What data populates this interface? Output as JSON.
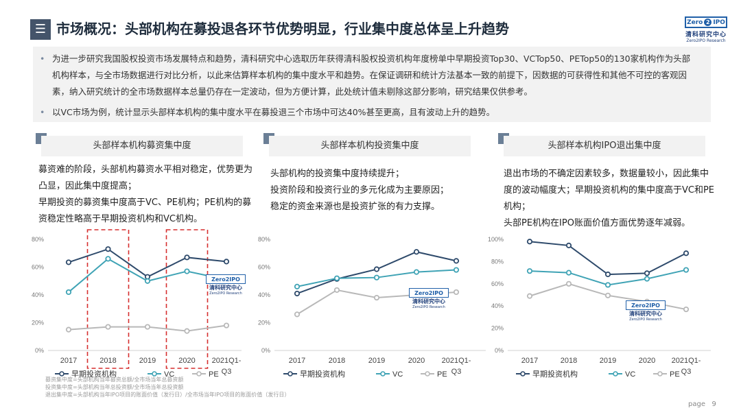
{
  "header": {
    "icon": "menu-icon",
    "title": "市场概况：头部机构在募投退各环节优势明显，行业集中度总体呈上升趋势",
    "logo": {
      "box_left": "Zero",
      "box_mid": "2",
      "box_right": "IPO",
      "cn": "清科研究中心",
      "en": "Zero2IPO Research"
    }
  },
  "intro": {
    "bullets": [
      "为进一步研究我国股权投资市场发展特点和趋势，清科研究中心选取历年获得清科股权投资机构年度榜单中早期投资Top30、VCTop50、PETop50的130家机构作为头部机构样本，与全市场数据进行对比分析，以此来估算样本机构的集中度水平和趋势。在保证调研和统计方法基本一致的前提下，因数据的可获得性和其他不可控的客观因素，纳入研究统计的全市场数据样本总量仍存在一定波动，但为方便计算，此处统计值未剔除这部分影响，研究结果仅供参考。",
      "以VC市场为例，统计显示头部样本机构的集中度水平在募投退三个市场中可达40%甚至更高，且有波动上升的趋势。"
    ]
  },
  "panels": [
    {
      "title": "头部样本机构募资集中度",
      "desc": "募资难的阶段，头部机构募资水平相对稳定，优势更为凸显，因此集中度提高；\n早期投资的募资集中度高于VC、PE机构；PE机构的募资稳定性略高于早期投资机构和VC机构。"
    },
    {
      "title": "头部样本机构投资集中度",
      "desc": "头部机构的投资集中度持续提升；\n投资阶段和投资行业的多元化成为主要原因；\n稳定的资金来源也是投资扩张的有力支撑。"
    },
    {
      "title": "头部样本机构IPO退出集中度",
      "desc": "退出市场的不确定因素较多，数据量较小，因此集中度的波动幅度大；早期投资机构的集中度高于VC和PE机构；\n头部PE机构在IPO账面价值方面优势逐年减弱。"
    }
  ],
  "chart_data": [
    {
      "type": "line",
      "title": "头部样本机构募资集中度",
      "categories": [
        "2017",
        "2018",
        "2019",
        "2020",
        "2021Q1-Q3"
      ],
      "series": [
        {
          "name": "早期投资机构",
          "values": [
            63.5,
            73,
            53,
            67,
            64
          ]
        },
        {
          "name": "VC",
          "values": [
            42,
            66,
            50,
            57,
            51
          ]
        },
        {
          "name": "PE",
          "values": [
            15,
            17,
            17,
            14,
            18
          ]
        }
      ],
      "ylim": [
        0,
        80
      ],
      "yticks": [
        "0%",
        "20%",
        "40%",
        "60%",
        "80%"
      ],
      "highlight_categories": [
        "2018",
        "2020"
      ]
    },
    {
      "type": "line",
      "title": "头部样本机构投资集中度",
      "categories": [
        "2017",
        "2018",
        "2019",
        "2020",
        "2021Q1-Q3"
      ],
      "series": [
        {
          "name": "早期投资机构",
          "values": [
            41,
            51.5,
            58.5,
            71,
            64.5
          ]
        },
        {
          "name": "VC",
          "values": [
            46,
            52,
            52.5,
            56.5,
            58
          ]
        },
        {
          "name": "PE",
          "values": [
            26,
            43.5,
            38,
            40,
            42
          ]
        }
      ],
      "ylim": [
        0,
        80
      ],
      "yticks": [
        "0%",
        "20%",
        "40%",
        "60%",
        "80%"
      ]
    },
    {
      "type": "line",
      "title": "头部样本机构IPO退出集中度",
      "categories": [
        "2017",
        "2018",
        "2019",
        "2020",
        "2021Q1-Q3"
      ],
      "series": [
        {
          "name": "早期投资机构",
          "values": [
            98,
            94.5,
            68.5,
            69.5,
            87.5
          ]
        },
        {
          "name": "VC",
          "values": [
            71.5,
            70,
            59,
            64.5,
            72.5
          ]
        },
        {
          "name": "PE",
          "values": [
            49,
            60,
            49.5,
            44,
            37
          ]
        }
      ],
      "ylim": [
        0,
        100
      ],
      "yticks": [
        "0%",
        "20%",
        "40%",
        "60%",
        "80%",
        "100%"
      ]
    }
  ],
  "colors": {
    "series": [
      "#2e4a6b",
      "#3fa3b5",
      "#b8b8b8"
    ],
    "highlight": "#d62f2f"
  },
  "watermark": {
    "box": "Zero2IPO",
    "cn": "清科研究中心",
    "en": "Zero2IPO Research"
  },
  "footnotes": [
    "募资集中度=头部机构当年募资总额/全市场当年总募资额",
    "投资集中度=头部机构当年总投资额/全市场当年总投资额",
    "退出集中度=头部机构当年IPO项目的账面价值（发行日）/全市场当年IPO项目的账面价值（发行日）"
  ],
  "page": {
    "label": "page",
    "number": "9"
  }
}
